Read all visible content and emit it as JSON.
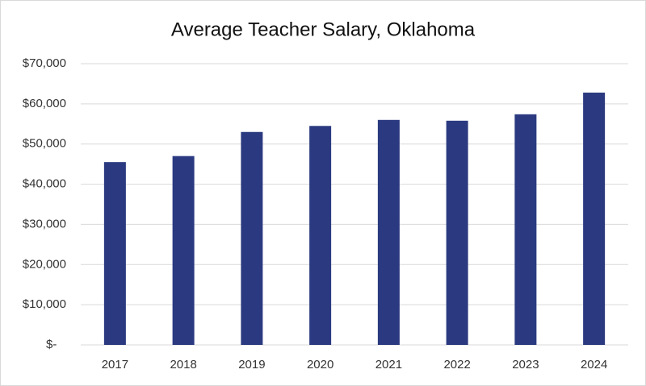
{
  "chart_data": {
    "type": "bar",
    "title": "Average Teacher Salary, Oklahoma",
    "categories": [
      "2017",
      "2018",
      "2019",
      "2020",
      "2021",
      "2022",
      "2023",
      "2024"
    ],
    "values": [
      45500,
      47000,
      53000,
      54500,
      56000,
      55800,
      57400,
      62800
    ],
    "color": "#2b3a80",
    "ylim": [
      0,
      70000
    ],
    "yticks": [
      {
        "value": 0,
        "label": "$-"
      },
      {
        "value": 10000,
        "label": "$10,000"
      },
      {
        "value": 20000,
        "label": "$20,000"
      },
      {
        "value": 30000,
        "label": "$30,000"
      },
      {
        "value": 40000,
        "label": "$40,000"
      },
      {
        "value": 50000,
        "label": "$50,000"
      },
      {
        "value": 60000,
        "label": "$60,000"
      },
      {
        "value": 70000,
        "label": "$70,000"
      }
    ],
    "grid": true
  }
}
